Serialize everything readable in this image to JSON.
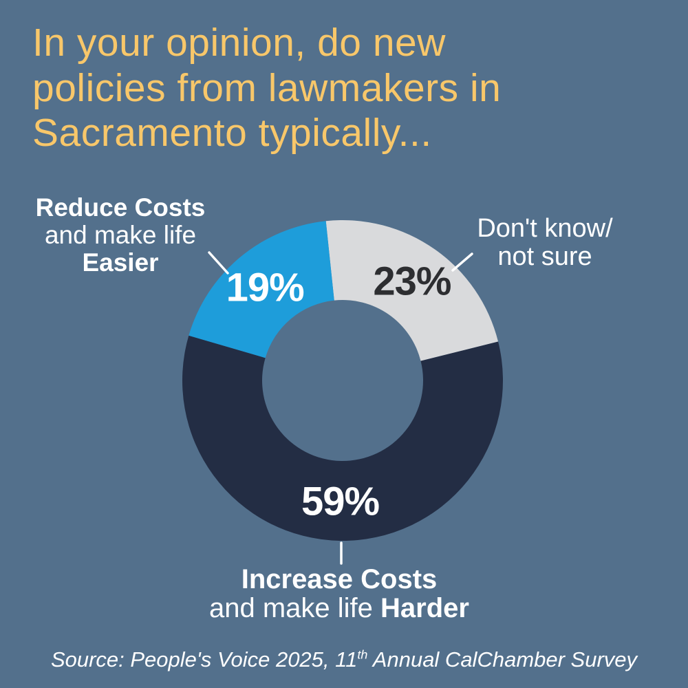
{
  "colors": {
    "background": "#53708C",
    "title": "#F8C76A",
    "white": "#FFFFFF",
    "navy": "#232D44",
    "blue": "#1E9DDA",
    "gray": "#D9DADC",
    "dark_label": "#2D2E31"
  },
  "title": "In your opinion, do new\npolicies from lawmakers in\nSacramento typically...",
  "chart_data": {
    "type": "pie",
    "subtype": "donut",
    "title": "In your opinion, do new policies from lawmakers in Sacramento typically...",
    "total": 101,
    "start_angle_deg": -6,
    "direction": "clockwise",
    "segments": [
      {
        "name": "Don't know/ not sure",
        "value": 23,
        "color_key": "gray",
        "value_label_color_key": "dark_label"
      },
      {
        "name": "Increase Costs and make life Harder",
        "value": 59,
        "color_key": "navy",
        "value_label_color_key": "white"
      },
      {
        "name": "Reduce Costs and make life Easier",
        "value": 19,
        "color_key": "blue",
        "value_label_color_key": "white"
      }
    ]
  },
  "labels": {
    "reduce": {
      "line1": "Reduce Costs",
      "line2": "and make life",
      "line3": "Easier"
    },
    "dontknow": {
      "line1": "Don't know/",
      "line2": "not sure"
    },
    "increase": {
      "line1": "Increase Costs",
      "line2_regular": "and make life ",
      "line2_bold": "Harder"
    }
  },
  "source": {
    "prefix": "Source: People's Voice 2025, 11",
    "superscript": "th",
    "suffix": " Annual CalChamber Survey"
  }
}
